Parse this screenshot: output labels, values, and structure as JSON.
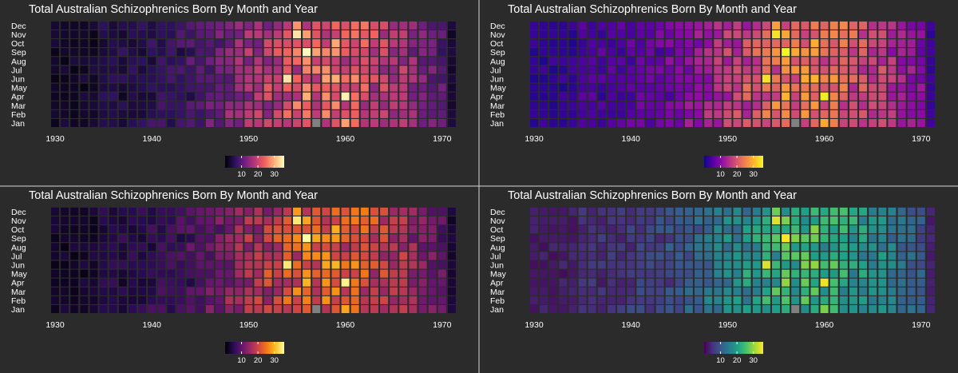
{
  "chart_data": [
    {
      "type": "heatmap",
      "title": "Total Australian Schizophrenics Born By Month and Year",
      "palette": "magma",
      "colors": [
        "#000004",
        "#2c115f",
        "#721f81",
        "#b73779",
        "#f1605d",
        "#feb078",
        "#fcfdbf"
      ],
      "na_color": "#808080",
      "x_ticks": [
        "1930",
        "1940",
        "1950",
        "1960",
        "1970"
      ],
      "months": [
        "Jan",
        "Feb",
        "Mar",
        "Apr",
        "May",
        "Jun",
        "Jul",
        "Aug",
        "Sep",
        "Oct",
        "Nov",
        "Dec"
      ],
      "colorbar_ticks": [
        "10",
        "20",
        "30"
      ],
      "value_range": [
        0,
        36
      ],
      "xlim": [
        1930,
        1971
      ]
    },
    {
      "type": "heatmap",
      "title": "Total Australian Schizophrenics Born By Month and Year",
      "palette": "plasma",
      "colors": [
        "#0d0887",
        "#5302a3",
        "#8b0aa5",
        "#b83289",
        "#db5c68",
        "#f48849",
        "#febc2a",
        "#f0f921"
      ],
      "na_color": "#808080",
      "x_ticks": [
        "1930",
        "1940",
        "1950",
        "1960",
        "1970"
      ],
      "months": [
        "Jan",
        "Feb",
        "Mar",
        "Apr",
        "May",
        "Jun",
        "Jul",
        "Aug",
        "Sep",
        "Oct",
        "Nov",
        "Dec"
      ],
      "colorbar_ticks": [
        "10",
        "20",
        "30"
      ],
      "value_range": [
        0,
        36
      ],
      "xlim": [
        1930,
        1971
      ]
    },
    {
      "type": "heatmap",
      "title": "Total Australian Schizophrenics Born By Month and Year",
      "palette": "inferno",
      "colors": [
        "#000004",
        "#280b54",
        "#65156e",
        "#9f2a63",
        "#d44842",
        "#f57d15",
        "#fac127",
        "#fcffa4"
      ],
      "na_color": "#808080",
      "x_ticks": [
        "1930",
        "1940",
        "1950",
        "1960",
        "1970"
      ],
      "months": [
        "Jan",
        "Feb",
        "Mar",
        "Apr",
        "May",
        "Jun",
        "Jul",
        "Aug",
        "Sep",
        "Oct",
        "Nov",
        "Dec"
      ],
      "colorbar_ticks": [
        "10",
        "20",
        "30"
      ],
      "value_range": [
        0,
        36
      ],
      "xlim": [
        1930,
        1971
      ]
    },
    {
      "type": "heatmap",
      "title": "Total Australian Schizophrenics Born By Month and Year",
      "palette": "viridis",
      "colors": [
        "#440154",
        "#46337e",
        "#365c8d",
        "#277f8e",
        "#1fa187",
        "#4ac16d",
        "#a0da39",
        "#fde725"
      ],
      "na_color": "#808080",
      "x_ticks": [
        "1930",
        "1940",
        "1950",
        "1960",
        "1970"
      ],
      "months": [
        "Jan",
        "Feb",
        "Mar",
        "Apr",
        "May",
        "Jun",
        "Jul",
        "Aug",
        "Sep",
        "Oct",
        "Nov",
        "Dec"
      ],
      "colorbar_ticks": [
        "10",
        "20",
        "30"
      ],
      "value_range": [
        0,
        36
      ],
      "xlim": [
        1930,
        1971
      ]
    }
  ]
}
